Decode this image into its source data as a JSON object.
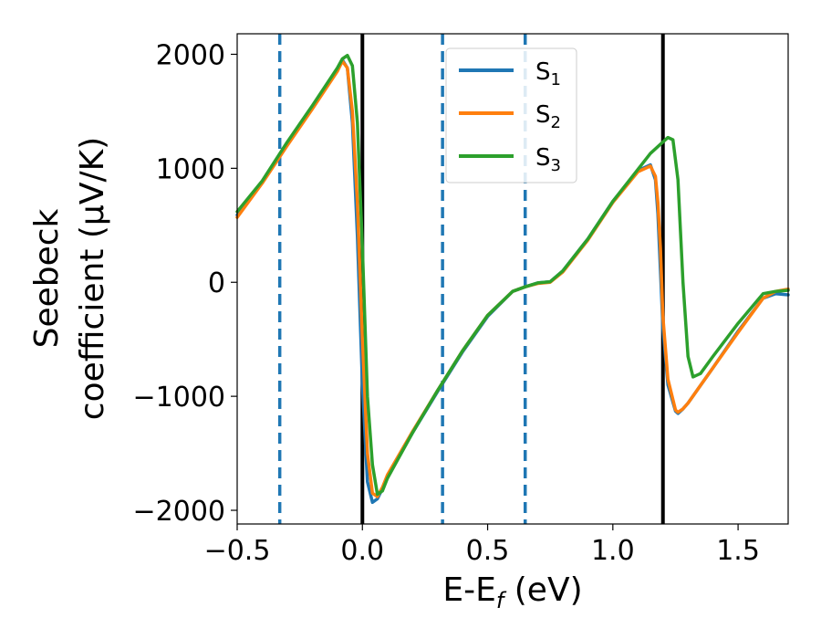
{
  "chart_data": {
    "type": "line",
    "title": "",
    "xlabel": "E-E",
    "xlabel_sub": "f",
    "xlabel_unit": " (eV)",
    "ylabel_line1": "Seebeck",
    "ylabel_line2": "coefficient  (μV/K)",
    "xlim": [
      -0.5,
      1.7
    ],
    "ylim": [
      -2120,
      2180
    ],
    "xticks": [
      -0.5,
      0.0,
      0.5,
      1.0,
      1.5
    ],
    "xtick_labels": [
      "−0.5",
      "0.0",
      "0.5",
      "1.0",
      "1.5"
    ],
    "yticks": [
      2000,
      1000,
      0,
      -1000,
      -2000
    ],
    "ytick_labels": [
      "2000",
      "1000",
      "0",
      "−1000",
      "−2000"
    ],
    "legend_position": "top-center",
    "vlines_solid": [
      0.0,
      1.2
    ],
    "vlines_dashed": [
      -0.33,
      0.32,
      0.65
    ],
    "vline_colors": {
      "solid": "#000000",
      "dashed": "#1f77b4"
    },
    "series": [
      {
        "name": "S",
        "sub": "1",
        "color": "#1f77b4",
        "x": [
          -0.5,
          -0.4,
          -0.3,
          -0.2,
          -0.1,
          -0.08,
          -0.06,
          -0.04,
          -0.02,
          0.0,
          0.02,
          0.04,
          0.06,
          0.08,
          0.1,
          0.2,
          0.3,
          0.4,
          0.5,
          0.6,
          0.65,
          0.7,
          0.75,
          0.8,
          0.9,
          1.0,
          1.1,
          1.15,
          1.17,
          1.18,
          1.19,
          1.2,
          1.22,
          1.25,
          1.26,
          1.28,
          1.3,
          1.4,
          1.5,
          1.6,
          1.65,
          1.7
        ],
        "values": [
          590,
          880,
          1210,
          1530,
          1860,
          1950,
          1880,
          1400,
          400,
          -900,
          -1750,
          -1930,
          -1900,
          -1810,
          -1700,
          -1320,
          -960,
          -610,
          -300,
          -80,
          -40,
          -5,
          5,
          100,
          380,
          710,
          980,
          1030,
          900,
          600,
          100,
          -400,
          -900,
          -1130,
          -1150,
          -1110,
          -1060,
          -750,
          -430,
          -140,
          -100,
          -110
        ]
      },
      {
        "name": "S",
        "sub": "2",
        "color": "#ff7f0e",
        "x": [
          -0.5,
          -0.4,
          -0.3,
          -0.2,
          -0.1,
          -0.08,
          -0.06,
          -0.04,
          -0.02,
          0.0,
          0.02,
          0.04,
          0.06,
          0.08,
          0.1,
          0.2,
          0.3,
          0.4,
          0.5,
          0.6,
          0.65,
          0.7,
          0.75,
          0.8,
          0.9,
          1.0,
          1.1,
          1.15,
          1.17,
          1.18,
          1.19,
          1.2,
          1.22,
          1.25,
          1.26,
          1.28,
          1.3,
          1.4,
          1.5,
          1.6,
          1.65,
          1.7
        ],
        "values": [
          570,
          870,
          1200,
          1520,
          1850,
          1940,
          1880,
          1500,
          700,
          -500,
          -1500,
          -1850,
          -1880,
          -1800,
          -1690,
          -1310,
          -950,
          -600,
          -290,
          -80,
          -40,
          -10,
          0,
          90,
          370,
          700,
          970,
          1020,
          930,
          700,
          300,
          -300,
          -850,
          -1120,
          -1140,
          -1110,
          -1060,
          -750,
          -440,
          -140,
          -80,
          -60
        ]
      },
      {
        "name": "S",
        "sub": "3",
        "color": "#2ca02c",
        "x": [
          -0.5,
          -0.4,
          -0.3,
          -0.2,
          -0.1,
          -0.08,
          -0.06,
          -0.04,
          -0.02,
          0.0,
          0.02,
          0.04,
          0.06,
          0.08,
          0.1,
          0.2,
          0.3,
          0.4,
          0.5,
          0.6,
          0.65,
          0.7,
          0.75,
          0.8,
          0.9,
          1.0,
          1.1,
          1.15,
          1.2,
          1.22,
          1.24,
          1.26,
          1.28,
          1.3,
          1.32,
          1.35,
          1.4,
          1.5,
          1.6,
          1.65,
          1.7
        ],
        "values": [
          620,
          890,
          1230,
          1550,
          1880,
          1960,
          1990,
          1900,
          1400,
          300,
          -1000,
          -1600,
          -1860,
          -1830,
          -1720,
          -1320,
          -950,
          -600,
          -290,
          -80,
          -40,
          -5,
          5,
          100,
          380,
          710,
          990,
          1130,
          1230,
          1270,
          1250,
          900,
          0,
          -650,
          -830,
          -800,
          -650,
          -360,
          -100,
          -80,
          -70
        ]
      }
    ]
  }
}
